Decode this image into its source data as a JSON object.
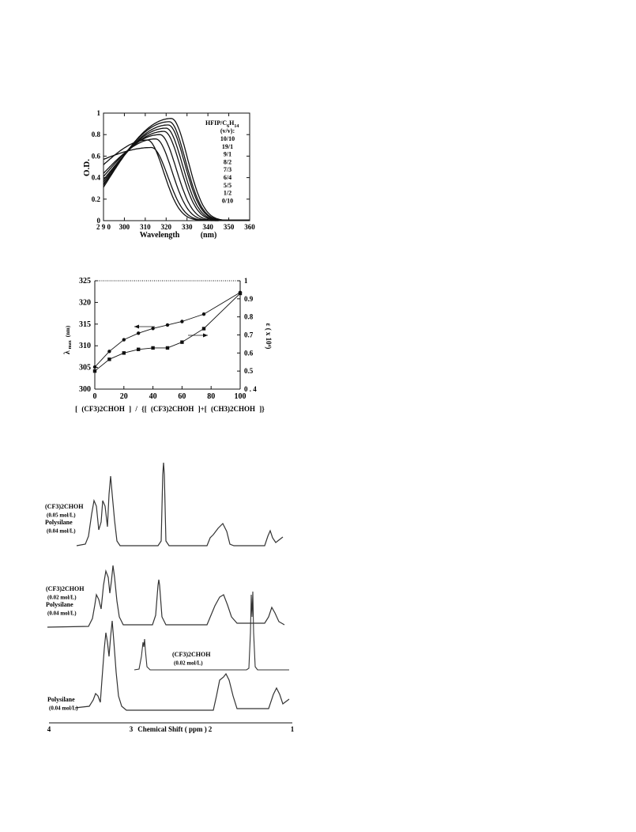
{
  "figure1": {
    "chart_data": {
      "type": "line",
      "ylabel": "O.D.",
      "xlabel": "Wavelength",
      "xunit": "(nm)",
      "xlim": [
        290,
        360
      ],
      "ylim": [
        0,
        1
      ],
      "xticks": [
        "2 9 0",
        "300",
        "310",
        "320",
        "330",
        "340",
        "350",
        "360"
      ],
      "yticks": [
        "0",
        "0.2",
        "0.4",
        "0.6",
        "0.8",
        "1"
      ],
      "legend_title": "HFIP/C",
      "legend_title_sub": "6",
      "legend_title_H": "H",
      "legend_title_sub2": "14",
      "legend_header": "(v/v):",
      "legend_entries": [
        "10/10",
        "19/1",
        "9/1",
        "8/2",
        "7/3",
        "6/4",
        "5/5",
        "1/2",
        "0/10"
      ],
      "series": [
        {
          "name": "10/10",
          "peak_x": 322.5,
          "peak_y": 0.95,
          "y_at_290": 0.31
        },
        {
          "name": "19/1",
          "peak_x": 321.5,
          "peak_y": 0.92,
          "y_at_290": 0.33
        },
        {
          "name": "9/1",
          "peak_x": 321,
          "peak_y": 0.89,
          "y_at_290": 0.34
        },
        {
          "name": "8/2",
          "peak_x": 320,
          "peak_y": 0.86,
          "y_at_290": 0.36
        },
        {
          "name": "7/3",
          "peak_x": 319,
          "peak_y": 0.83,
          "y_at_290": 0.38
        },
        {
          "name": "6/4",
          "peak_x": 317,
          "peak_y": 0.8,
          "y_at_290": 0.41
        },
        {
          "name": "5/5",
          "peak_x": 315,
          "peak_y": 0.76,
          "y_at_290": 0.44
        },
        {
          "name": "1/2",
          "peak_x": 311,
          "peak_y": 0.75,
          "y_at_290": 0.52
        },
        {
          "name": "0/10",
          "peak_x": 313,
          "peak_y": 0.68,
          "y_at_290": 0.57
        }
      ]
    }
  },
  "figure2": {
    "chart_data": {
      "type": "line",
      "ylabel_left": "λ",
      "ylabel_left_sub": "max",
      "ylabel_left_unit": "(nm)",
      "ylabel_right": "ε ( x 10⁴)",
      "xlabel": "[ (CF3)2CHOH ] / {[ (CF3)2CHOH ]+[ (CH3)2CHOH ]}",
      "xlim": [
        0,
        100
      ],
      "ylim_left": [
        300,
        325
      ],
      "ylim_right": [
        0.4,
        1
      ],
      "xticks": [
        "0",
        "20",
        "40",
        "60",
        "80",
        "100"
      ],
      "yticks_left": [
        "300",
        "305",
        "310",
        "315",
        "320",
        "325"
      ],
      "yticks_right": [
        "0 . 4",
        "0.5",
        "0.6",
        "0.7",
        "0.8",
        "0.9",
        "1"
      ],
      "series": [
        {
          "name": "λmax",
          "marker": "circle",
          "axis": "left",
          "x": [
            0,
            10,
            20,
            30,
            40,
            50,
            60,
            75,
            100
          ],
          "y": [
            305.1,
            308.7,
            311.4,
            312.9,
            314,
            314.8,
            315.6,
            317.3,
            322.3
          ]
        },
        {
          "name": "ε",
          "marker": "square",
          "axis": "right",
          "x": [
            0,
            10,
            20,
            30,
            40,
            50,
            60,
            75,
            100
          ],
          "y": [
            0.5,
            0.565,
            0.6,
            0.62,
            0.628,
            0.628,
            0.66,
            0.735,
            0.93
          ]
        }
      ]
    }
  },
  "figure3": {
    "xaxis_ticks": [
      "4",
      "3",
      "2",
      "1"
    ],
    "xaxis_title": "Chemical Shift ( ppm )",
    "spectra": [
      {
        "label_lines": [
          "(CF3)2CHOH",
          "(0.05 mol/L)",
          "Polysilane",
          "(0.04 mol/L)"
        ]
      },
      {
        "label_lines": [
          "(CF3)2CHOH",
          "(0.02 mol/L)",
          "Polysilane",
          "(0.04 mol/L)"
        ]
      },
      {
        "label_lines": [
          "(CF3)2CHOH",
          "(0.02 mol/L)"
        ]
      },
      {
        "label_lines": [
          "Polysilane",
          "(0.04 mol/L)"
        ]
      }
    ]
  }
}
